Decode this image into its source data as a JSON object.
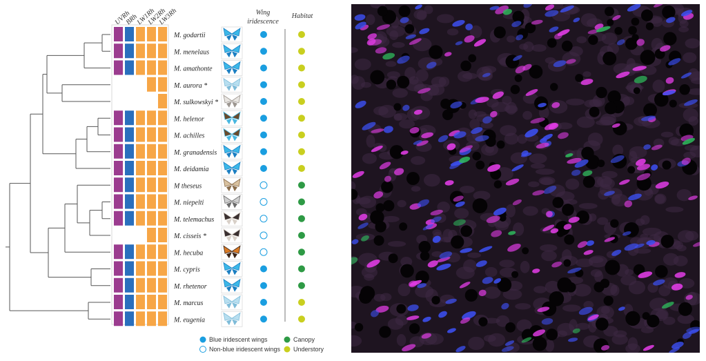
{
  "opsin_headers": [
    "UVRh",
    "BRh",
    "LW1Rh",
    "LW2Rh",
    "LW3Rh"
  ],
  "column_headers": {
    "iridescence": [
      "Wing",
      "iridescence"
    ],
    "habitat": "Habitat"
  },
  "colors": {
    "uv": "#9b3c8f",
    "blue_opsin": "#2a6fbd",
    "lw": "#f7a646",
    "iridescent": "#1a9ee0",
    "canopy": "#2e9a45",
    "understory": "#c9cf1f",
    "tree_line": "#555555"
  },
  "species": [
    {
      "name": "M. godartii",
      "opsins": [
        true,
        true,
        true,
        true,
        true
      ],
      "iridescent": true,
      "habitat": "understory",
      "wing": "blue"
    },
    {
      "name": "M. menelaus",
      "opsins": [
        true,
        true,
        true,
        true,
        true
      ],
      "iridescent": true,
      "habitat": "understory",
      "wing": "blue"
    },
    {
      "name": "M. amathonte",
      "opsins": [
        true,
        true,
        true,
        true,
        true
      ],
      "iridescent": true,
      "habitat": "understory",
      "wing": "blue"
    },
    {
      "name": "M. aurora *",
      "opsins": [
        false,
        false,
        false,
        true,
        true
      ],
      "iridescent": true,
      "habitat": "understory",
      "wing": "pale"
    },
    {
      "name": "M. sulkowskyi *",
      "opsins": [
        false,
        false,
        false,
        false,
        true
      ],
      "iridescent": true,
      "habitat": "understory",
      "wing": "white"
    },
    {
      "name": "M. helenor",
      "opsins": [
        true,
        true,
        true,
        true,
        true
      ],
      "iridescent": true,
      "habitat": "understory",
      "wing": "brown"
    },
    {
      "name": "M. achilles",
      "opsins": [
        true,
        true,
        true,
        true,
        true
      ],
      "iridescent": true,
      "habitat": "understory",
      "wing": "brown"
    },
    {
      "name": "M. granadensis",
      "opsins": [
        true,
        true,
        true,
        true,
        true
      ],
      "iridescent": true,
      "habitat": "understory",
      "wing": "blue"
    },
    {
      "name": "M. deidamia",
      "opsins": [
        true,
        true,
        true,
        true,
        true
      ],
      "iridescent": true,
      "habitat": "understory",
      "wing": "blue"
    },
    {
      "name": "M theseus",
      "opsins": [
        true,
        true,
        true,
        true,
        true
      ],
      "iridescent": false,
      "habitat": "canopy",
      "wing": "tan"
    },
    {
      "name": "M. niepelti",
      "opsins": [
        true,
        true,
        true,
        true,
        true
      ],
      "iridescent": false,
      "habitat": "canopy",
      "wing": "grey"
    },
    {
      "name": "M. telemachus",
      "opsins": [
        true,
        true,
        true,
        true,
        true
      ],
      "iridescent": false,
      "habitat": "canopy",
      "wing": "dark"
    },
    {
      "name": "M. cisseis *",
      "opsins": [
        false,
        false,
        false,
        true,
        true
      ],
      "iridescent": false,
      "habitat": "canopy",
      "wing": "dark"
    },
    {
      "name": "M. hecuba",
      "opsins": [
        true,
        true,
        true,
        true,
        true
      ],
      "iridescent": false,
      "habitat": "canopy",
      "wing": "orange"
    },
    {
      "name": "M. cypris",
      "opsins": [
        true,
        true,
        true,
        true,
        true
      ],
      "iridescent": true,
      "habitat": "canopy",
      "wing": "blue"
    },
    {
      "name": "M. rhetenor",
      "opsins": [
        true,
        true,
        true,
        true,
        true
      ],
      "iridescent": true,
      "habitat": "canopy",
      "wing": "blue"
    },
    {
      "name": "M. marcus",
      "opsins": [
        true,
        true,
        true,
        true,
        true
      ],
      "iridescent": true,
      "habitat": "understory",
      "wing": "pale"
    },
    {
      "name": "M. eugenia",
      "opsins": [
        true,
        true,
        true,
        true,
        true
      ],
      "iridescent": true,
      "habitat": "understory",
      "wing": "pale"
    }
  ],
  "legend": {
    "blue_iridescent": "Blue iridescent wings",
    "non_blue": "Non-blue iridescent wings",
    "canopy": "Canopy",
    "understory": "Understory"
  },
  "micrograph": {
    "background": "#1e1420",
    "channels": [
      "#e23ce6",
      "#3c4ff0",
      "#2fb85c"
    ]
  }
}
